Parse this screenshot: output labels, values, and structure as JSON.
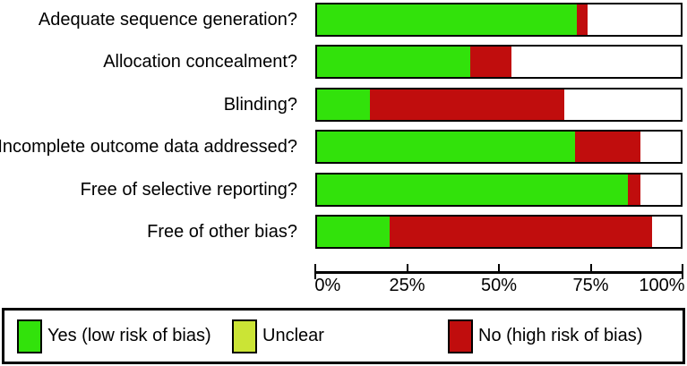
{
  "chart_data": {
    "type": "bar",
    "orientation": "horizontal",
    "stacked": true,
    "title": "",
    "categories": [
      "Adequate sequence generation?",
      "Allocation concealment?",
      "Blinding?",
      "Incomplete outcome data addressed?",
      "Free of selective reporting?",
      "Free of other bias?"
    ],
    "series": [
      {
        "key": "yes",
        "name": "Yes (low risk of bias)",
        "color": "#32e20b",
        "values": [
          71.5,
          42.0,
          14.5,
          71.0,
          85.5,
          20.0
        ]
      },
      {
        "key": "no",
        "name": "No (high risk of bias)",
        "color": "#c00d0d",
        "values": [
          3.0,
          11.5,
          53.5,
          18.0,
          3.5,
          72.0
        ]
      },
      {
        "key": "remainder-white",
        "name": "Remainder (shown white)",
        "color": "#ffffff",
        "values": [
          25.5,
          46.5,
          32.0,
          11.0,
          11.0,
          8.0
        ]
      }
    ],
    "segment_order": [
      "yes",
      "no",
      "remainder-white"
    ],
    "x_axis": {
      "min": 0,
      "max": 100,
      "ticks": [
        {
          "label": "0%",
          "value": 0
        },
        {
          "label": "25%",
          "value": 25
        },
        {
          "label": "50%",
          "value": 50
        },
        {
          "label": "75%",
          "value": 75
        },
        {
          "label": "100%",
          "value": 100
        }
      ]
    },
    "legend_position": "bottom"
  },
  "legend": {
    "items": [
      {
        "key": "yes",
        "label": "Yes (low risk of bias)",
        "color": "#32e20b"
      },
      {
        "key": "unclear",
        "label": "Unclear",
        "color": "#cbe435"
      },
      {
        "key": "no",
        "label": "No (high risk of bias)",
        "color": "#c00d0d"
      }
    ]
  }
}
